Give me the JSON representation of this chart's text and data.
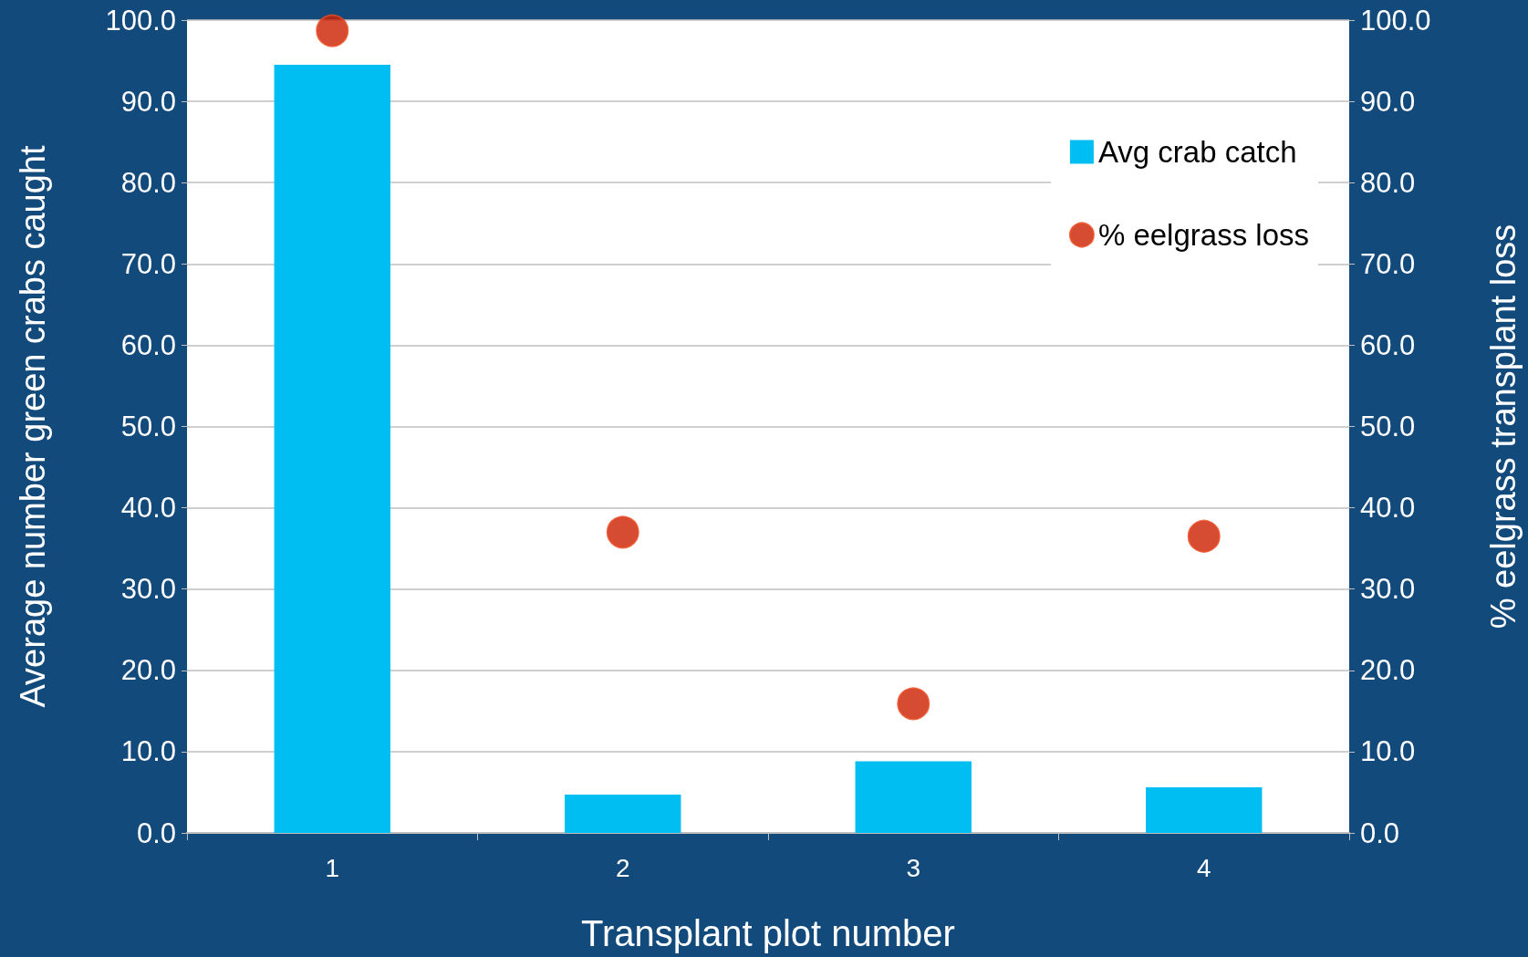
{
  "chart_data": {
    "type": "bar",
    "xlabel": "Transplant plot number",
    "ylabel": "Average number green crabs caught",
    "y2label": "% eelgrass transplant loss",
    "categories": [
      "1",
      "2",
      "3",
      "4"
    ],
    "series": [
      {
        "name": "Avg crab catch",
        "color": "#00bdf2",
        "values": [
          94.5,
          4.7,
          8.8,
          5.6
        ]
      },
      {
        "name": "% eelgrass loss",
        "type": "scatter",
        "axis": "y2",
        "color": "#cc1f00",
        "values": [
          98.7,
          37.0,
          15.9,
          36.5
        ]
      }
    ],
    "ylim": [
      0,
      100
    ],
    "yticks": [
      {
        "value": 0,
        "label": "0.0"
      },
      {
        "value": 10,
        "label": "10.0"
      },
      {
        "value": 20,
        "label": "20.0"
      },
      {
        "value": 30,
        "label": "30.0"
      },
      {
        "value": 40,
        "label": "40.0"
      },
      {
        "value": 50,
        "label": "50.0"
      },
      {
        "value": 60,
        "label": "60.0"
      },
      {
        "value": 70,
        "label": "70.0"
      },
      {
        "value": 80,
        "label": "80.0"
      },
      {
        "value": 90,
        "label": "90.0"
      },
      {
        "value": 100,
        "label": "100.0"
      }
    ],
    "y2lim": [
      0,
      100
    ],
    "y2ticks": [
      {
        "value": 0,
        "label": "0.0"
      },
      {
        "value": 10,
        "label": "10.0"
      },
      {
        "value": 20,
        "label": "20.0"
      },
      {
        "value": 30,
        "label": "30.0"
      },
      {
        "value": 40,
        "label": "40.0"
      },
      {
        "value": 50,
        "label": "50.0"
      },
      {
        "value": 60,
        "label": "60.0"
      },
      {
        "value": 70,
        "label": "70.0"
      },
      {
        "value": 80,
        "label": "80.0"
      },
      {
        "value": 90,
        "label": "90.0"
      },
      {
        "value": 100,
        "label": "100.0"
      }
    ],
    "grid": "y",
    "legend": "top right",
    "marker": "circle"
  }
}
